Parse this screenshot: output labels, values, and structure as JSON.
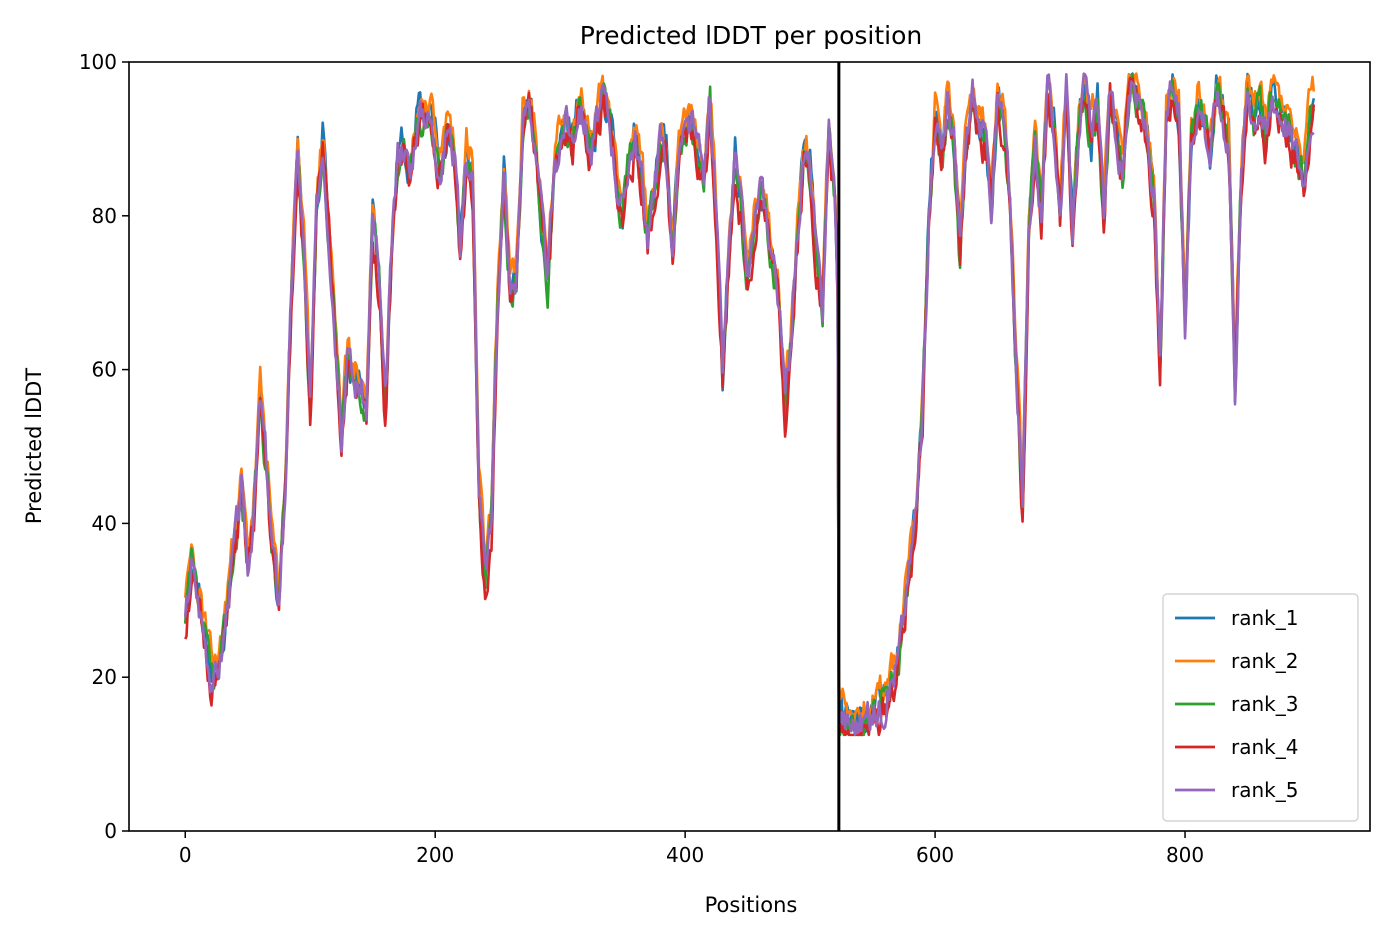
{
  "chart_data": {
    "type": "line",
    "title": "Predicted lDDT per position",
    "xlabel": "Positions",
    "ylabel": "Predicted lDDT",
    "xlim": [
      -45,
      948
    ],
    "ylim": [
      0,
      100
    ],
    "xticks": [
      0,
      200,
      400,
      600,
      800
    ],
    "yticks": [
      0,
      20,
      40,
      60,
      80,
      100
    ],
    "grid": false,
    "legend_position": "bottom-right",
    "vertical_line": {
      "x": 523,
      "color": "#000000"
    },
    "segment_break": 523,
    "base_profile": [
      [
        0,
        27
      ],
      [
        5,
        35
      ],
      [
        10,
        30
      ],
      [
        15,
        26
      ],
      [
        20,
        21
      ],
      [
        25,
        20
      ],
      [
        30,
        24
      ],
      [
        35,
        32
      ],
      [
        40,
        38
      ],
      [
        45,
        44
      ],
      [
        50,
        35
      ],
      [
        55,
        42
      ],
      [
        60,
        56
      ],
      [
        65,
        48
      ],
      [
        70,
        36
      ],
      [
        75,
        30
      ],
      [
        80,
        45
      ],
      [
        85,
        70
      ],
      [
        90,
        89
      ],
      [
        95,
        75
      ],
      [
        100,
        55
      ],
      [
        105,
        80
      ],
      [
        110,
        90
      ],
      [
        115,
        78
      ],
      [
        120,
        65
      ],
      [
        125,
        52
      ],
      [
        130,
        62
      ],
      [
        135,
        58
      ],
      [
        140,
        58
      ],
      [
        145,
        55
      ],
      [
        150,
        80
      ],
      [
        155,
        72
      ],
      [
        160,
        55
      ],
      [
        165,
        75
      ],
      [
        170,
        88
      ],
      [
        175,
        90
      ],
      [
        180,
        85
      ],
      [
        185,
        92
      ],
      [
        190,
        94
      ],
      [
        195,
        93
      ],
      [
        200,
        90
      ],
      [
        205,
        86
      ],
      [
        210,
        92
      ],
      [
        215,
        88
      ],
      [
        220,
        76
      ],
      [
        225,
        88
      ],
      [
        230,
        85
      ],
      [
        235,
        45
      ],
      [
        240,
        33
      ],
      [
        245,
        40
      ],
      [
        250,
        70
      ],
      [
        255,
        85
      ],
      [
        260,
        70
      ],
      [
        265,
        72
      ],
      [
        270,
        92
      ],
      [
        275,
        95
      ],
      [
        280,
        90
      ],
      [
        285,
        80
      ],
      [
        290,
        72
      ],
      [
        295,
        85
      ],
      [
        300,
        90
      ],
      [
        305,
        93
      ],
      [
        310,
        90
      ],
      [
        315,
        95
      ],
      [
        320,
        92
      ],
      [
        325,
        88
      ],
      [
        330,
        93
      ],
      [
        335,
        95
      ],
      [
        340,
        92
      ],
      [
        345,
        85
      ],
      [
        350,
        80
      ],
      [
        355,
        88
      ],
      [
        360,
        90
      ],
      [
        365,
        85
      ],
      [
        370,
        78
      ],
      [
        375,
        82
      ],
      [
        380,
        90
      ],
      [
        385,
        88
      ],
      [
        390,
        75
      ],
      [
        395,
        88
      ],
      [
        400,
        90
      ],
      [
        405,
        92
      ],
      [
        410,
        88
      ],
      [
        415,
        85
      ],
      [
        420,
        95
      ],
      [
        425,
        80
      ],
      [
        430,
        60
      ],
      [
        435,
        75
      ],
      [
        440,
        88
      ],
      [
        445,
        80
      ],
      [
        450,
        72
      ],
      [
        455,
        78
      ],
      [
        460,
        84
      ],
      [
        465,
        80
      ],
      [
        470,
        75
      ],
      [
        475,
        70
      ],
      [
        480,
        55
      ],
      [
        485,
        65
      ],
      [
        490,
        78
      ],
      [
        495,
        88
      ],
      [
        500,
        86
      ],
      [
        505,
        75
      ],
      [
        510,
        68
      ],
      [
        515,
        92
      ],
      [
        520,
        82
      ],
      [
        522,
        70
      ],
      [
        523,
        16
      ],
      [
        530,
        14
      ],
      [
        540,
        14
      ],
      [
        550,
        15
      ],
      [
        560,
        17
      ],
      [
        570,
        22
      ],
      [
        575,
        28
      ],
      [
        580,
        35
      ],
      [
        585,
        42
      ],
      [
        590,
        55
      ],
      [
        595,
        80
      ],
      [
        600,
        93
      ],
      [
        605,
        88
      ],
      [
        610,
        95
      ],
      [
        615,
        90
      ],
      [
        620,
        75
      ],
      [
        625,
        90
      ],
      [
        630,
        96
      ],
      [
        635,
        92
      ],
      [
        640,
        90
      ],
      [
        645,
        82
      ],
      [
        650,
        95
      ],
      [
        655,
        92
      ],
      [
        660,
        82
      ],
      [
        665,
        60
      ],
      [
        670,
        42
      ],
      [
        675,
        78
      ],
      [
        680,
        90
      ],
      [
        685,
        80
      ],
      [
        690,
        97
      ],
      [
        695,
        92
      ],
      [
        700,
        80
      ],
      [
        705,
        96
      ],
      [
        710,
        78
      ],
      [
        715,
        93
      ],
      [
        720,
        97
      ],
      [
        725,
        90
      ],
      [
        730,
        95
      ],
      [
        735,
        80
      ],
      [
        740,
        96
      ],
      [
        745,
        90
      ],
      [
        750,
        85
      ],
      [
        755,
        97
      ],
      [
        760,
        96
      ],
      [
        765,
        93
      ],
      [
        770,
        90
      ],
      [
        775,
        83
      ],
      [
        780,
        60
      ],
      [
        785,
        92
      ],
      [
        790,
        97
      ],
      [
        795,
        93
      ],
      [
        800,
        66
      ],
      [
        805,
        90
      ],
      [
        810,
        95
      ],
      [
        815,
        93
      ],
      [
        820,
        88
      ],
      [
        825,
        96
      ],
      [
        830,
        93
      ],
      [
        835,
        90
      ],
      [
        840,
        58
      ],
      [
        845,
        85
      ],
      [
        850,
        97
      ],
      [
        855,
        93
      ],
      [
        860,
        95
      ],
      [
        865,
        90
      ],
      [
        870,
        96
      ],
      [
        875,
        94
      ],
      [
        880,
        93
      ],
      [
        885,
        90
      ],
      [
        890,
        88
      ],
      [
        895,
        85
      ],
      [
        900,
        93
      ],
      [
        903,
        94
      ]
    ],
    "series": [
      {
        "name": "rank_1",
        "color": "#1f77b4",
        "offset": 0.3,
        "seed": 11
      },
      {
        "name": "rank_2",
        "color": "#ff7f0e",
        "offset": 1.6,
        "seed": 23
      },
      {
        "name": "rank_3",
        "color": "#2ca02c",
        "offset": -0.6,
        "seed": 37
      },
      {
        "name": "rank_4",
        "color": "#d62728",
        "offset": -1.4,
        "seed": 51
      },
      {
        "name": "rank_5",
        "color": "#9467bd",
        "offset": 0.0,
        "seed": 67
      }
    ]
  }
}
